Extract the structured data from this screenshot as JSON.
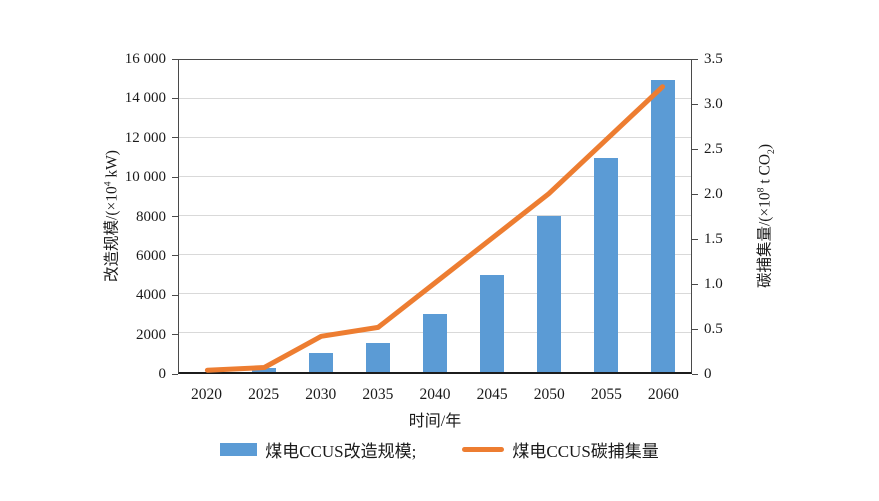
{
  "chart_data": {
    "type": "bar",
    "subtype": "bar-and-line dual axis",
    "categories": [
      "2020",
      "2025",
      "2030",
      "2035",
      "2040",
      "2045",
      "2050",
      "2055",
      "2060"
    ],
    "series": [
      {
        "name": "煤电CCUS改造规模",
        "type": "bar",
        "axis": "left",
        "color": "#5B9BD5",
        "values": [
          0,
          200,
          1000,
          1500,
          3000,
          5000,
          8000,
          11000,
          15000
        ]
      },
      {
        "name": "煤电CCUS碳捕集量",
        "type": "line",
        "axis": "right",
        "color": "#ED7D31",
        "values": [
          0.02,
          0.05,
          0.4,
          0.5,
          1.0,
          1.5,
          2.0,
          2.6,
          3.2
        ]
      }
    ],
    "left_axis": {
      "label": "改造规模/(×10⁴ kW)",
      "min": 0,
      "max": 16000,
      "ticks": [
        "0",
        "2000",
        "4000",
        "6000",
        "8000",
        "10 000",
        "12 000",
        "14 000",
        "16 000"
      ]
    },
    "right_axis": {
      "label": "碳捕集量/(×10⁸ t CO₂)",
      "min": 0,
      "max": 3.5,
      "ticks": [
        "0",
        "0.5",
        "1.0",
        "1.5",
        "2.0",
        "2.5",
        "3.0",
        "3.5"
      ]
    },
    "x_axis": {
      "label": "时间/年"
    },
    "grid": true,
    "legend_position": "bottom"
  },
  "axis_labels": {
    "left": {
      "pre": "改造规模/(×10",
      "sup": "4",
      "post": " kW)"
    },
    "right": {
      "pre": "碳捕集量/(×10",
      "sup": "8",
      "mid": " t CO",
      "sub": "2",
      "post": ")"
    },
    "x": "时间/年"
  },
  "legend": {
    "bar_label": "煤电CCUS改造规模;",
    "line_label": "煤电CCUS碳捕集量"
  }
}
